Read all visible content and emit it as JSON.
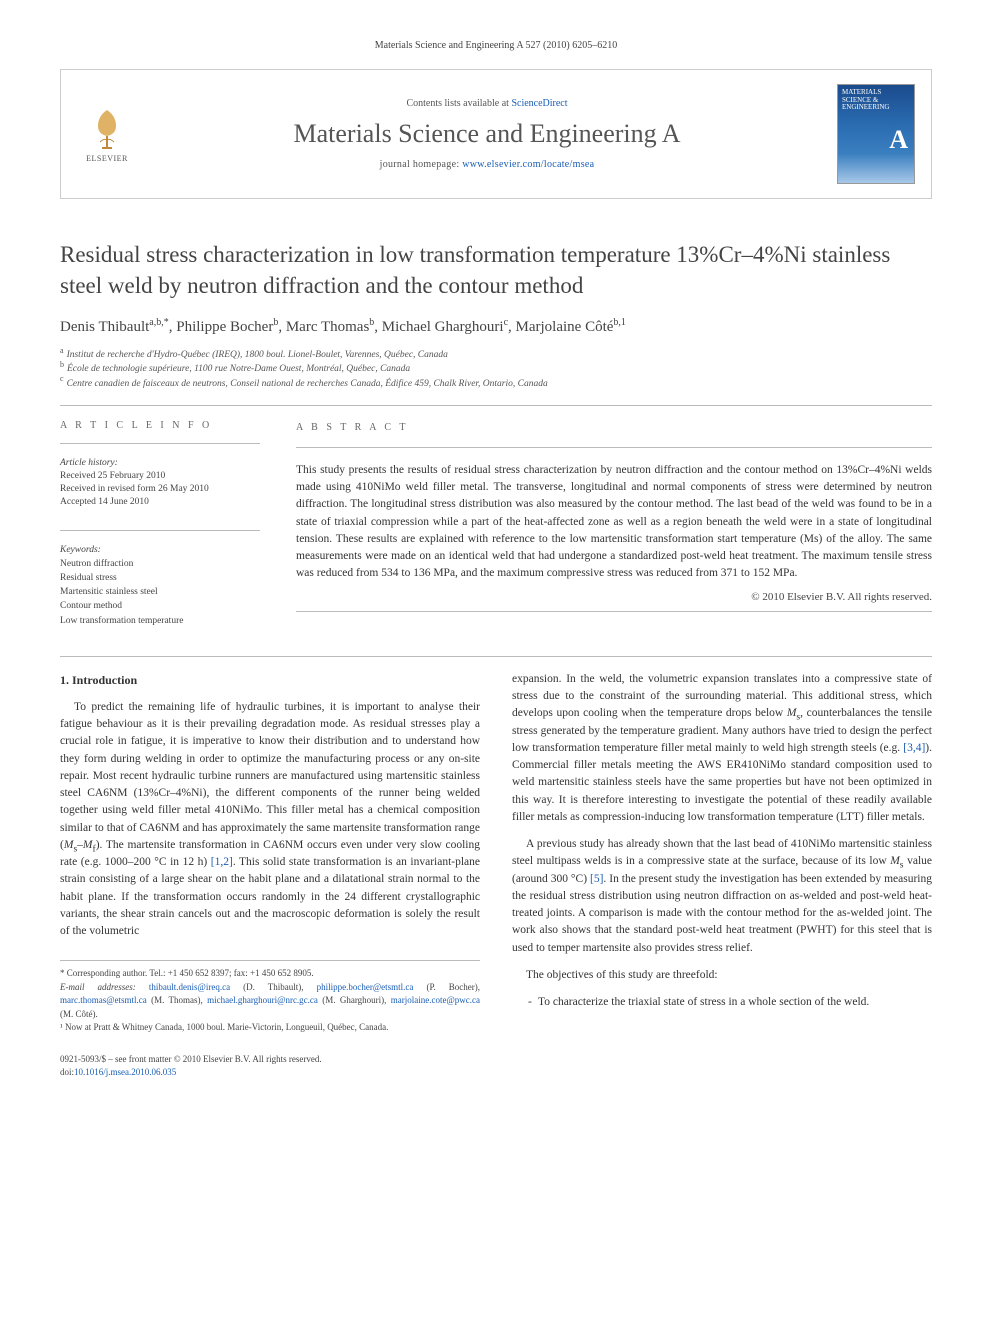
{
  "running_head": "Materials Science and Engineering A 527 (2010) 6205–6210",
  "masthead": {
    "contents_prefix": "Contents lists available at ",
    "contents_link": "ScienceDirect",
    "journal_name": "Materials Science and Engineering A",
    "homepage_prefix": "journal homepage: ",
    "homepage_url": "www.elsevier.com/locate/msea",
    "publisher": "ELSEVIER",
    "cover_title": "MATERIALS SCIENCE & ENGINEERING"
  },
  "title": "Residual stress characterization in low transformation temperature 13%Cr–4%Ni stainless steel weld by neutron diffraction and the contour method",
  "authors_html": "Denis Thibault<sup>a,b,*</sup>, Philippe Bocher<sup>b</sup>, Marc Thomas<sup>b</sup>, Michael Gharghouri<sup>c</sup>, Marjolaine Côté<sup>b,1</sup>",
  "affiliations": [
    {
      "sup": "a",
      "text": "Institut de recherche d'Hydro-Québec (IREQ), 1800 boul. Lionel-Boulet, Varennes, Québec, Canada"
    },
    {
      "sup": "b",
      "text": "École de technologie supérieure, 1100 rue Notre-Dame Ouest, Montréal, Québec, Canada"
    },
    {
      "sup": "c",
      "text": "Centre canadien de faisceaux de neutrons, Conseil national de recherches Canada, Édifice 459, Chalk River, Ontario, Canada"
    }
  ],
  "info": {
    "head": "a r t i c l e   i n f o",
    "history_label": "Article history:",
    "history": [
      "Received 25 February 2010",
      "Received in revised form 26 May 2010",
      "Accepted 14 June 2010"
    ],
    "keywords_label": "Keywords:",
    "keywords": [
      "Neutron diffraction",
      "Residual stress",
      "Martensitic stainless steel",
      "Contour method",
      "Low transformation temperature"
    ]
  },
  "abstract": {
    "head": "a b s t r a c t",
    "text": "This study presents the results of residual stress characterization by neutron diffraction and the contour method on 13%Cr–4%Ni welds made using 410NiMo weld filler metal. The transverse, longitudinal and normal components of stress were determined by neutron diffraction. The longitudinal stress distribution was also measured by the contour method. The last bead of the weld was found to be in a state of triaxial compression while a part of the heat-affected zone as well as a region beneath the weld were in a state of longitudinal tension. These results are explained with reference to the low martensitic transformation start temperature (Ms) of the alloy. The same measurements were made on an identical weld that had undergone a standardized post-weld heat treatment. The maximum tensile stress was reduced from 534 to 136 MPa, and the maximum compressive stress was reduced from 371 to 152 MPa.",
    "copyright": "© 2010 Elsevier B.V. All rights reserved."
  },
  "body": {
    "section_number": "1.",
    "section_title": "Introduction",
    "col1_p1": "To predict the remaining life of hydraulic turbines, it is important to analyse their fatigue behaviour as it is their prevailing degradation mode. As residual stresses play a crucial role in fatigue, it is imperative to know their distribution and to understand how they form during welding in order to optimize the manufacturing process or any on-site repair. Most recent hydraulic turbine runners are manufactured using martensitic stainless steel CA6NM (13%Cr–4%Ni), the different components of the runner being welded together using weld filler metal 410NiMo. This filler metal has a chemical composition similar to that of CA6NM and has approximately the same martensite transformation range (Ms–Mf). The martensite transformation in CA6NM occurs even under very slow cooling rate (e.g. 1000–200 °C in 12 h) [1,2]. This solid state transformation is an invariant-plane strain consisting of a large shear on the habit plane and a dilatational strain normal to the habit plane. If the transformation occurs randomly in the 24 different crystallographic variants, the shear strain cancels out and the macroscopic deformation is solely the result of the volumetric",
    "col2_p1": "expansion. In the weld, the volumetric expansion translates into a compressive state of stress due to the constraint of the surrounding material. This additional stress, which develops upon cooling when the temperature drops below Ms, counterbalances the tensile stress generated by the temperature gradient. Many authors have tried to design the perfect low transformation temperature filler metal mainly to weld high strength steels (e.g. [3,4]). Commercial filler metals meeting the AWS ER410NiMo standard composition used to weld martensitic stainless steels have the same properties but have not been optimized in this way. It is therefore interesting to investigate the potential of these readily available filler metals as compression-inducing low transformation temperature (LTT) filler metals.",
    "col2_p2": "A previous study has already shown that the last bead of 410NiMo martensitic stainless steel multipass welds is in a compressive state at the surface, because of its low Ms value (around 300 °C) [5]. In the present study the investigation has been extended by measuring the residual stress distribution using neutron diffraction on as-welded and post-weld heat-treated joints. A comparison is made with the contour method for the as-welded joint. The work also shows that the standard post-weld heat treatment (PWHT) for this steel that is used to temper martensite also provides stress relief.",
    "col2_p3": "The objectives of this study are threefold:",
    "objective_1": "To characterize the triaxial state of stress in a whole section of the weld."
  },
  "footnotes": {
    "corr": "* Corresponding author. Tel.: +1 450 652 8397; fax: +1 450 652 8905.",
    "emails_label": "E-mail addresses:",
    "emails": [
      {
        "addr": "thibault.denis@ireq.ca",
        "who": "(D. Thibault),"
      },
      {
        "addr": "philippe.bocher@etsmtl.ca",
        "who": "(P. Bocher),"
      },
      {
        "addr": "marc.thomas@etsmtl.ca",
        "who": "(M. Thomas),"
      },
      {
        "addr": "michael.gharghouri@nrc.gc.ca",
        "who": "(M. Gharghouri),"
      },
      {
        "addr": "marjolaine.cote@pwc.ca",
        "who": "(M. Côté)."
      }
    ],
    "note1": "¹ Now at Pratt & Whitney Canada, 1000 boul. Marie-Victorin, Longueuil, Québec, Canada."
  },
  "footer": {
    "issn_line": "0921-5093/$ – see front matter © 2010 Elsevier B.V. All rights reserved.",
    "doi_label": "doi:",
    "doi": "10.1016/j.msea.2010.06.035"
  }
}
